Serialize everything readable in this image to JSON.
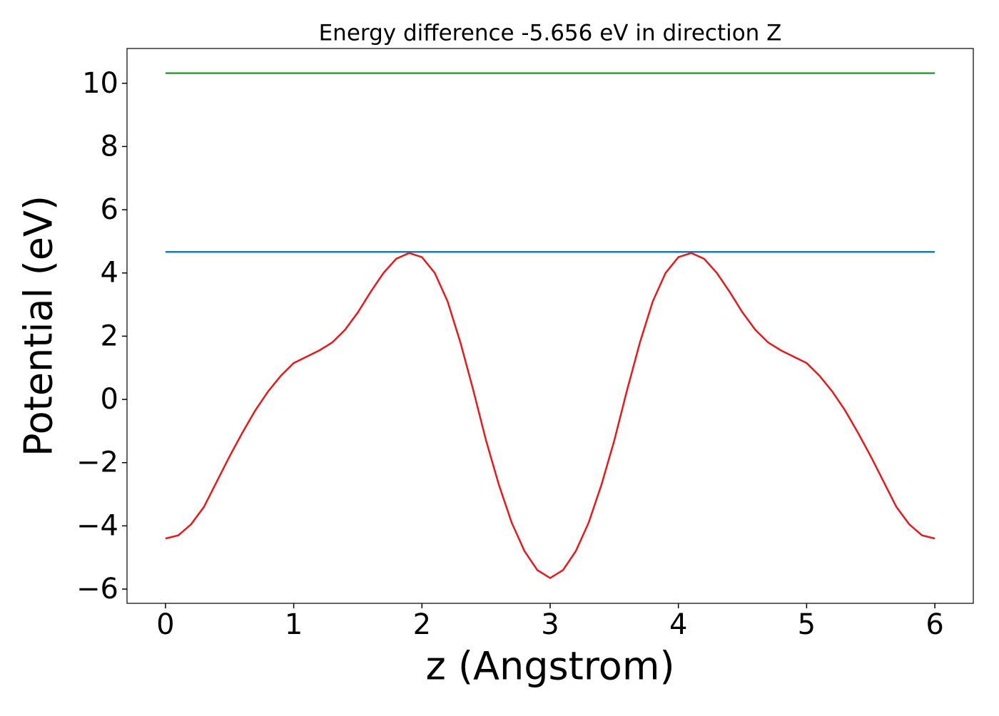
{
  "chart_data": {
    "type": "line",
    "title": "Energy difference -5.656 eV in direction Z",
    "xlabel": "z (Angstrom)",
    "ylabel": "Potential (eV)",
    "x": [
      0,
      0.1,
      0.2,
      0.3,
      0.4,
      0.5,
      0.6,
      0.7,
      0.8,
      0.9,
      1.0,
      1.1,
      1.2,
      1.3,
      1.4,
      1.5,
      1.6,
      1.7,
      1.8,
      1.9,
      2.0,
      2.1,
      2.2,
      2.3,
      2.4,
      2.5,
      2.6,
      2.7,
      2.8,
      2.9,
      3.0,
      3.1,
      3.2,
      3.3,
      3.4,
      3.5,
      3.6,
      3.7,
      3.8,
      3.9,
      4.0,
      4.1,
      4.2,
      4.3,
      4.4,
      4.5,
      4.6,
      4.7,
      4.8,
      4.9,
      5.0,
      5.1,
      5.2,
      5.3,
      5.4,
      5.5,
      5.6,
      5.7,
      5.8,
      5.9,
      6.0
    ],
    "series": [
      {
        "color": "#2ca02c",
        "values": [
          10.32,
          10.32,
          10.32,
          10.32,
          10.32,
          10.32,
          10.32,
          10.32,
          10.32,
          10.32,
          10.32,
          10.32,
          10.32,
          10.32,
          10.32,
          10.32,
          10.32,
          10.32,
          10.32,
          10.32,
          10.32,
          10.32,
          10.32,
          10.32,
          10.32,
          10.32,
          10.32,
          10.32,
          10.32,
          10.32,
          10.32,
          10.32,
          10.32,
          10.32,
          10.32,
          10.32,
          10.32,
          10.32,
          10.32,
          10.32,
          10.32,
          10.32,
          10.32,
          10.32,
          10.32,
          10.32,
          10.32,
          10.32,
          10.32,
          10.32,
          10.32,
          10.32,
          10.32,
          10.32,
          10.32,
          10.32,
          10.32,
          10.32,
          10.32,
          10.32,
          10.32
        ]
      },
      {
        "color": "#1f77b4",
        "values": [
          4.664,
          4.664,
          4.664,
          4.664,
          4.664,
          4.664,
          4.664,
          4.664,
          4.664,
          4.664,
          4.664,
          4.664,
          4.664,
          4.664,
          4.664,
          4.664,
          4.664,
          4.664,
          4.664,
          4.664,
          4.664,
          4.664,
          4.664,
          4.664,
          4.664,
          4.664,
          4.664,
          4.664,
          4.664,
          4.664,
          4.664,
          4.664,
          4.664,
          4.664,
          4.664,
          4.664,
          4.664,
          4.664,
          4.664,
          4.664,
          4.664,
          4.664,
          4.664,
          4.664,
          4.664,
          4.664,
          4.664,
          4.664,
          4.664,
          4.664,
          4.664,
          4.664,
          4.664,
          4.664,
          4.664,
          4.664,
          4.664,
          4.664,
          4.664,
          4.664,
          4.664
        ]
      },
      {
        "color": "#e41a1c",
        "values": [
          -4.4,
          -4.3,
          -3.95,
          -3.4,
          -2.6,
          -1.8,
          -1.05,
          -0.35,
          0.25,
          0.75,
          1.15,
          1.35,
          1.55,
          1.8,
          2.2,
          2.75,
          3.4,
          4.0,
          4.45,
          4.63,
          4.5,
          4.0,
          3.1,
          1.8,
          0.3,
          -1.3,
          -2.7,
          -3.9,
          -4.8,
          -5.4,
          -5.65,
          -5.4,
          -4.8,
          -3.9,
          -2.7,
          -1.3,
          0.3,
          1.8,
          3.1,
          4.0,
          4.5,
          4.63,
          4.45,
          4.0,
          3.4,
          2.75,
          2.2,
          1.8,
          1.55,
          1.35,
          1.15,
          0.75,
          0.25,
          -0.35,
          -1.05,
          -1.8,
          -2.6,
          -3.4,
          -3.95,
          -4.3,
          -4.4
        ]
      }
    ],
    "xlim": [
      -0.3,
      6.3
    ],
    "xticks": [
      0,
      1,
      2,
      3,
      4,
      5,
      6
    ],
    "ylim": [
      -6.45,
      11.1
    ],
    "yticks": [
      {
        "value": -6,
        "label": "−6"
      },
      {
        "value": -4,
        "label": "−4"
      },
      {
        "value": -2,
        "label": "−2"
      },
      0,
      2,
      4,
      6,
      8,
      10
    ]
  }
}
